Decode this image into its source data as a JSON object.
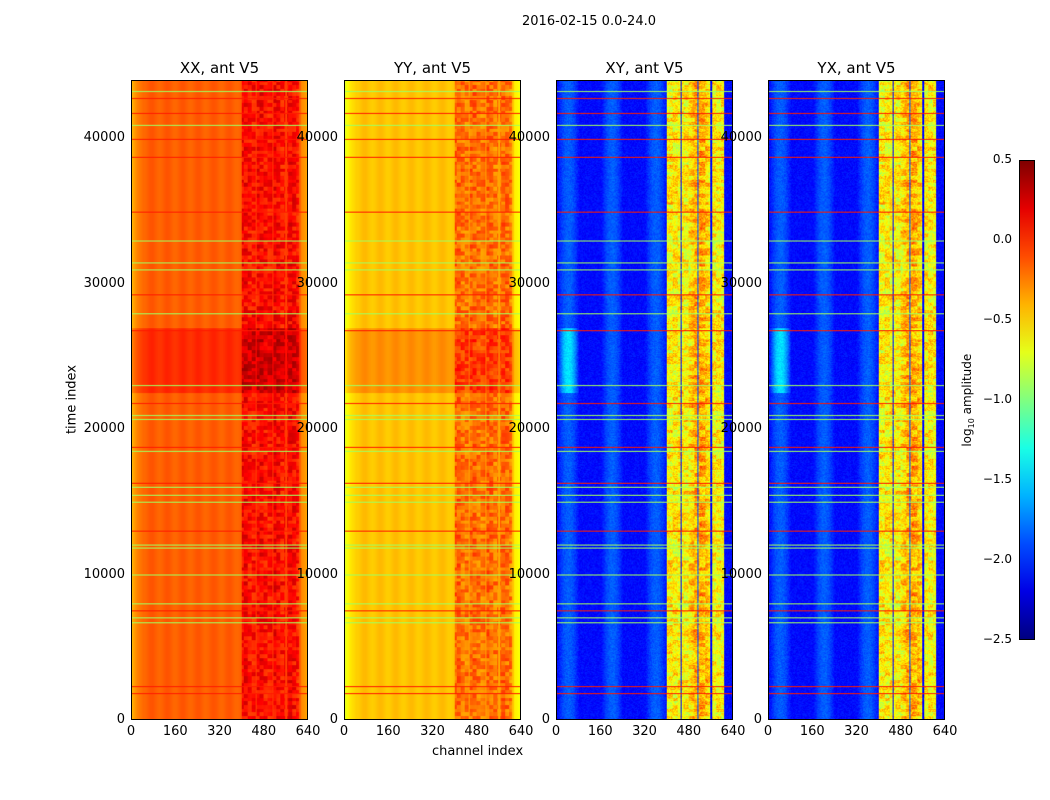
{
  "chart_data": {
    "type": "heatmap",
    "title": "2016-02-15 0.0-24.0",
    "xlabel": "channel index",
    "ylabel": "time index",
    "xlim": [
      0,
      640
    ],
    "ylim": [
      0,
      44000
    ],
    "xticks": [
      "0",
      "160",
      "320",
      "480",
      "640"
    ],
    "yticks": [
      "0",
      "10000",
      "20000",
      "30000",
      "40000"
    ],
    "panels": [
      {
        "title": "XX, ant V5",
        "baseline_log10": -0.15
      },
      {
        "title": "YY, ant V5",
        "baseline_log10": -0.45
      },
      {
        "title": "XY, ant V5",
        "baseline_log10": -2.1
      },
      {
        "title": "YX, ant V5",
        "baseline_log10": -2.1
      }
    ],
    "rfi_channel_bands": [
      [
        400,
        450
      ],
      [
        455,
        510
      ],
      [
        515,
        560
      ],
      [
        565,
        610
      ]
    ],
    "high_time_band": [
      22500,
      27000
    ],
    "flag_rows_high": [
      42800,
      41800,
      40000,
      38800,
      35000,
      29300,
      26800,
      21800,
      18800,
      16300,
      13000,
      7500,
      2300,
      1800
    ],
    "flag_rows_mid": [
      43300,
      41000,
      33000,
      31500,
      31000,
      28000,
      23000,
      21000,
      20700,
      18500,
      16000,
      15500,
      15000,
      12000,
      11800,
      10000,
      8000,
      7000,
      6700
    ],
    "colorbar": {
      "label": "log10 amplitude",
      "range": [
        -2.5,
        0.5
      ],
      "ticks": [
        "0.5",
        "0.0",
        "−0.5",
        "−1.0",
        "−1.5",
        "−2.0",
        "−2.5"
      ],
      "colormap": "jet"
    }
  }
}
